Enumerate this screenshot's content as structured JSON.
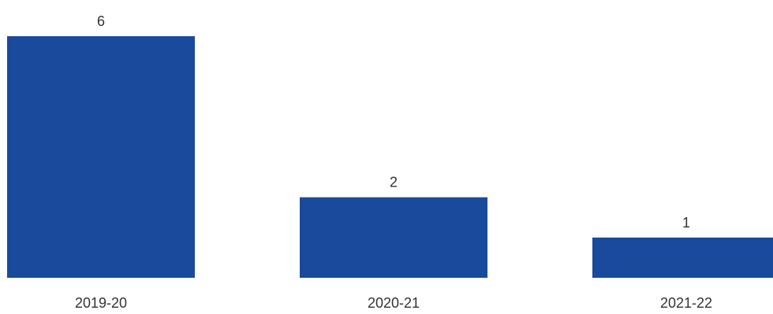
{
  "chart_data": {
    "type": "bar",
    "title": "",
    "xlabel": "",
    "ylabel": "",
    "categories": [
      "2019-20",
      "2020-21",
      "2021-22"
    ],
    "values": [
      6,
      2,
      1
    ],
    "data_labels": [
      "6",
      "2",
      "1"
    ],
    "ylim": [
      0,
      6
    ],
    "grid": false,
    "legend": "none",
    "bar_color": "#1a4a9c"
  }
}
